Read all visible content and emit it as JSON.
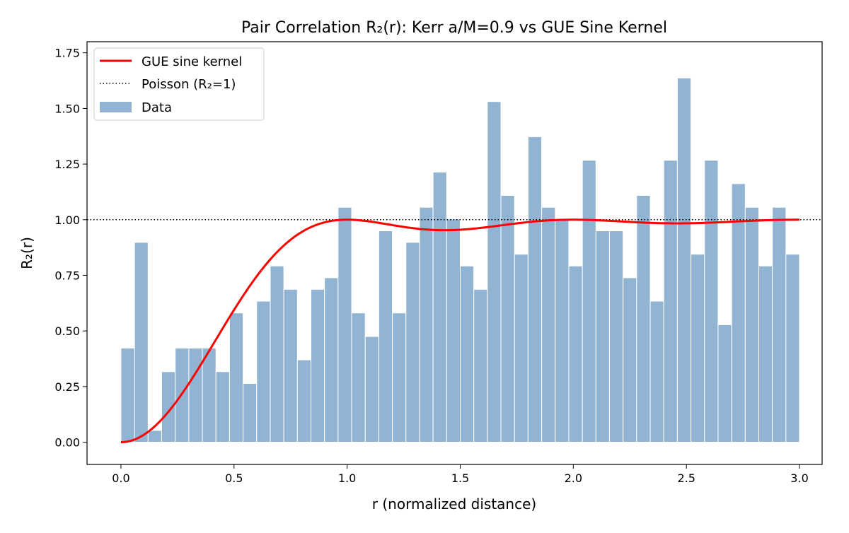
{
  "chart_data": {
    "type": "bar",
    "title": "Pair Correlation R₂(r): Kerr a/M=0.9 vs GUE Sine Kernel",
    "xlabel": "r (normalized distance)",
    "ylabel": "R₂(r)",
    "xlim": [
      -0.15,
      3.1
    ],
    "ylim": [
      -0.1,
      1.8
    ],
    "xticks": [
      0.0,
      0.5,
      1.0,
      1.5,
      2.0,
      2.5,
      3.0
    ],
    "xtick_labels": [
      "0.0",
      "0.5",
      "1.0",
      "1.5",
      "2.0",
      "2.5",
      "3.0"
    ],
    "yticks": [
      0.0,
      0.25,
      0.5,
      0.75,
      1.0,
      1.25,
      1.5,
      1.75
    ],
    "ytick_labels": [
      "0.00",
      "0.25",
      "0.50",
      "0.75",
      "1.00",
      "1.25",
      "1.50",
      "1.75"
    ],
    "grid": false,
    "legend_position": "top-left",
    "bin_edges_range": [
      0,
      3
    ],
    "bin_count": 50,
    "series": [
      {
        "name": "Data",
        "kind": "histogram",
        "color": "#92b4d3",
        "values": [
          0.423,
          0.898,
          0.053,
          0.317,
          0.423,
          0.423,
          0.423,
          0.317,
          0.581,
          0.264,
          0.634,
          0.792,
          0.687,
          0.37,
          0.687,
          0.739,
          1.056,
          0.581,
          0.475,
          0.95,
          0.581,
          0.898,
          1.056,
          1.214,
          1.003,
          0.792,
          0.687,
          1.531,
          1.109,
          0.845,
          1.373,
          1.056,
          1.003,
          0.792,
          1.267,
          0.95,
          0.95,
          0.739,
          1.109,
          0.634,
          1.267,
          1.637,
          0.845,
          1.267,
          0.528,
          1.162,
          1.056,
          0.792,
          1.056,
          0.845
        ]
      },
      {
        "name": "GUE sine kernel",
        "kind": "line",
        "color": "#ff0000",
        "x_range": [
          0,
          3
        ]
      },
      {
        "name": "Poisson (R₂=1)",
        "kind": "hline",
        "color": "#000000",
        "y": 1.0
      }
    ]
  }
}
